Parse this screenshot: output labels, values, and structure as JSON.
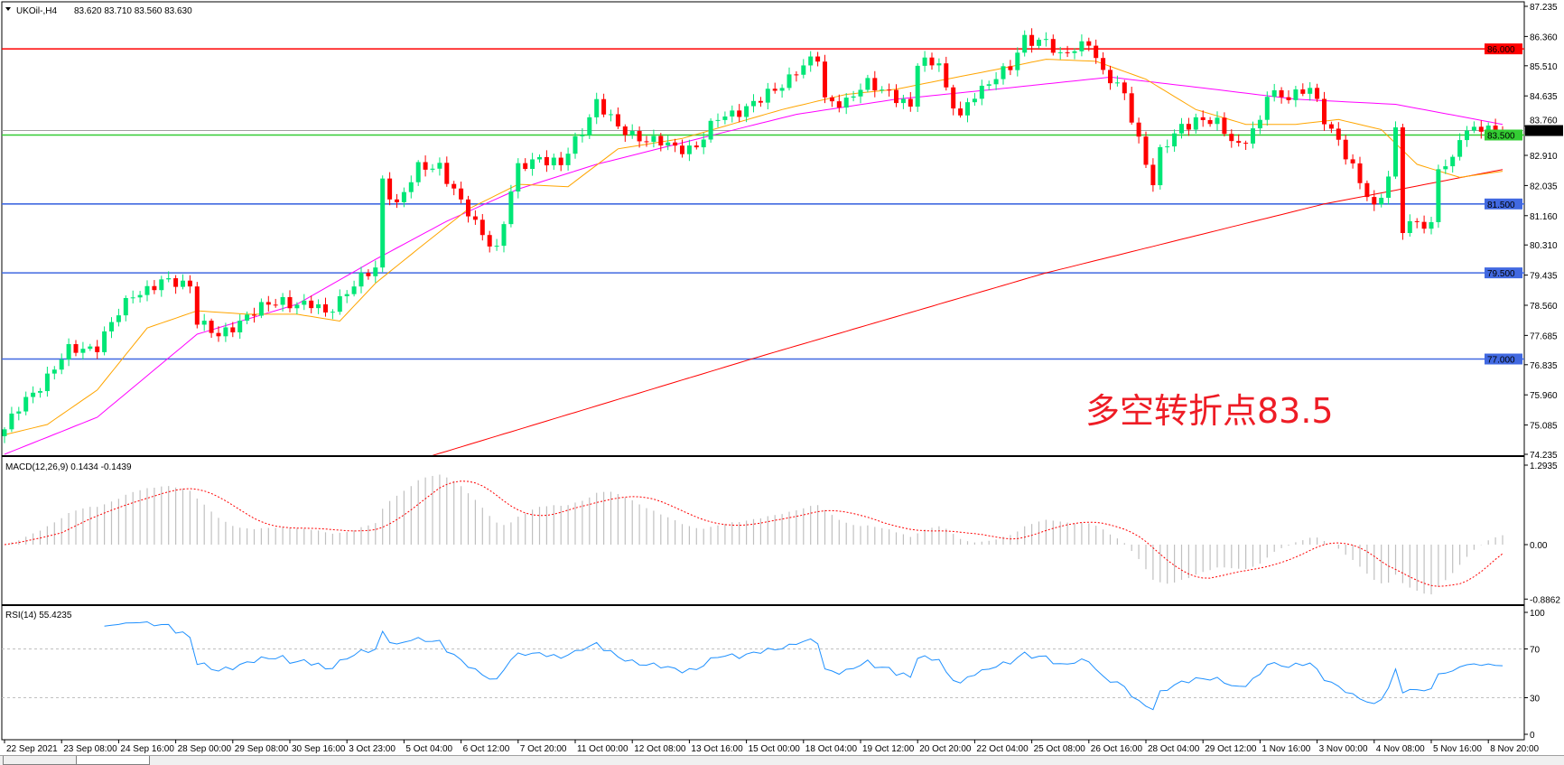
{
  "header": {
    "symbol": "UKOil-,H4",
    "ohlc": "83.620 83.710 83.560 83.630",
    "menu_icon": "triangle-down-icon"
  },
  "annotation": {
    "text": "多空转折点83.5",
    "color": "#ee1c25"
  },
  "colors": {
    "bull": "#00e676",
    "bear": "#ff0000",
    "ma_fast": "#ffa500",
    "ma_mid": "#ff00ff",
    "ma_slow": "#ff0000",
    "level_red": "#ff0000",
    "level_green": "#33cc33",
    "level_blue": "#4169e1",
    "macd_hist": "#c0c0c0",
    "macd_signal": "#ff0000",
    "rsi": "#1e90ff"
  },
  "chart_data": [
    {
      "type": "candlestick",
      "pane": "main",
      "title": "UKOil-,H4",
      "ylim": [
        74.235,
        87.235
      ],
      "price_ticks": [
        "87.235",
        "86.360",
        "85.510",
        "84.635",
        "83.760",
        "82.910",
        "82.035",
        "81.160",
        "80.310",
        "79.435",
        "78.560",
        "77.685",
        "76.835",
        "75.960",
        "75.085",
        "74.235"
      ],
      "current_price": "83.630",
      "levels": [
        {
          "price": 86.0,
          "label": "86.000",
          "color": "#ff0000"
        },
        {
          "price": 83.5,
          "label": "83.500",
          "color": "#33cc33"
        },
        {
          "price": 81.5,
          "label": "81.500",
          "color": "#4169e1"
        },
        {
          "price": 79.5,
          "label": "79.500",
          "color": "#4169e1"
        },
        {
          "price": 77.0,
          "label": "77.000",
          "color": "#4169e1"
        }
      ],
      "close_estimates_by_bar": [
        [
          0,
          74.96
        ],
        [
          2,
          75.54
        ],
        [
          5,
          76.27
        ],
        [
          9,
          77.22
        ],
        [
          13,
          77.4
        ],
        [
          18,
          78.9
        ],
        [
          22,
          79.2
        ],
        [
          26,
          79.2
        ],
        [
          27,
          78.15
        ],
        [
          30,
          77.6
        ],
        [
          34,
          78.3
        ],
        [
          39,
          78.7
        ],
        [
          43,
          78.55
        ],
        [
          45,
          78.3
        ],
        [
          48,
          79.0
        ],
        [
          52,
          79.6
        ],
        [
          53,
          82.2
        ],
        [
          55,
          81.5
        ],
        [
          58,
          82.5
        ],
        [
          61,
          82.65
        ],
        [
          64,
          81.5
        ],
        [
          66,
          80.9
        ],
        [
          69,
          80.2
        ],
        [
          71,
          81.8
        ],
        [
          72,
          82.5
        ],
        [
          75,
          82.9
        ],
        [
          78,
          82.6
        ],
        [
          81,
          83.66
        ],
        [
          83,
          84.5
        ],
        [
          86,
          83.66
        ],
        [
          90,
          83.4
        ],
        [
          94,
          83.1
        ],
        [
          97,
          83.2
        ],
        [
          100,
          83.95
        ],
        [
          103,
          84.24
        ],
        [
          106,
          84.5
        ],
        [
          108,
          84.8
        ],
        [
          111,
          85.4
        ],
        [
          114,
          85.7
        ],
        [
          115,
          84.5
        ],
        [
          118,
          84.5
        ],
        [
          121,
          84.95
        ],
        [
          124,
          84.8
        ],
        [
          127,
          84.24
        ],
        [
          128,
          85.55
        ],
        [
          131,
          85.7
        ],
        [
          132,
          84.8
        ],
        [
          134,
          83.95
        ],
        [
          136,
          84.68
        ],
        [
          139,
          85.26
        ],
        [
          141,
          85.4
        ],
        [
          143,
          86.28
        ],
        [
          146,
          86.28
        ],
        [
          148,
          85.7
        ],
        [
          150,
          86.0
        ],
        [
          152,
          86.28
        ],
        [
          154,
          85.26
        ],
        [
          157,
          84.68
        ],
        [
          159,
          83.4
        ],
        [
          161,
          82.07
        ],
        [
          162,
          82.94
        ],
        [
          165,
          83.8
        ],
        [
          167,
          83.95
        ],
        [
          170,
          83.8
        ],
        [
          173,
          83.23
        ],
        [
          176,
          83.8
        ],
        [
          177,
          84.68
        ],
        [
          180,
          84.68
        ],
        [
          183,
          84.8
        ],
        [
          185,
          83.95
        ],
        [
          187,
          83.4
        ],
        [
          190,
          82.07
        ],
        [
          192,
          81.35
        ],
        [
          194,
          82.36
        ],
        [
          195,
          83.66
        ],
        [
          196,
          80.76
        ],
        [
          198,
          80.9
        ],
        [
          200,
          80.9
        ],
        [
          201,
          82.65
        ],
        [
          203,
          82.7
        ],
        [
          204,
          83.4
        ],
        [
          207,
          83.8
        ],
        [
          210,
          83.63
        ]
      ],
      "ma_fast_by_bar": [
        [
          0,
          74.8
        ],
        [
          6,
          75.1
        ],
        [
          13,
          76.1
        ],
        [
          20,
          77.9
        ],
        [
          27,
          78.4
        ],
        [
          34,
          78.3
        ],
        [
          41,
          78.3
        ],
        [
          47,
          78.1
        ],
        [
          52,
          79.2
        ],
        [
          58,
          80.2
        ],
        [
          65,
          81.35
        ],
        [
          72,
          82.07
        ],
        [
          79,
          82.0
        ],
        [
          86,
          83.1
        ],
        [
          95,
          83.4
        ],
        [
          100,
          83.7
        ],
        [
          109,
          84.24
        ],
        [
          118,
          84.68
        ],
        [
          125,
          84.83
        ],
        [
          132,
          85.12
        ],
        [
          139,
          85.4
        ],
        [
          146,
          85.7
        ],
        [
          153,
          85.64
        ],
        [
          160,
          85.12
        ],
        [
          167,
          84.24
        ],
        [
          174,
          83.81
        ],
        [
          181,
          83.81
        ],
        [
          187,
          83.95
        ],
        [
          193,
          83.66
        ],
        [
          198,
          82.65
        ],
        [
          204,
          82.27
        ],
        [
          210,
          82.45
        ]
      ],
      "ma_mid_by_bar": [
        [
          0,
          74.235
        ],
        [
          13,
          75.31
        ],
        [
          27,
          77.72
        ],
        [
          41,
          78.59
        ],
        [
          52,
          79.89
        ],
        [
          62,
          81.0
        ],
        [
          72,
          81.93
        ],
        [
          83,
          82.65
        ],
        [
          97,
          83.38
        ],
        [
          111,
          84.1
        ],
        [
          125,
          84.54
        ],
        [
          139,
          84.83
        ],
        [
          155,
          85.18
        ],
        [
          167,
          84.89
        ],
        [
          181,
          84.54
        ],
        [
          195,
          84.39
        ],
        [
          210,
          83.81
        ]
      ],
      "ma_slow_by_bar": [
        [
          60,
          74.2
        ],
        [
          106,
          77.08
        ],
        [
          146,
          79.5
        ],
        [
          185,
          81.5
        ],
        [
          210,
          82.5
        ]
      ],
      "time_labels": [
        "22 Sep 2021",
        "23 Sep 08:00",
        "24 Sep 16:00",
        "28 Sep 00:00",
        "29 Sep 08:00",
        "30 Sep 16:00",
        "3 Oct 23:00",
        "5 Oct 04:00",
        "6 Oct 12:00",
        "7 Oct 20:00",
        "11 Oct 00:00",
        "12 Oct 08:00",
        "13 Oct 16:00",
        "15 Oct 00:00",
        "18 Oct 04:00",
        "19 Oct 12:00",
        "20 Oct 20:00",
        "22 Oct 04:00",
        "25 Oct 08:00",
        "26 Oct 16:00",
        "28 Oct 04:00",
        "29 Oct 12:00",
        "1 Nov 16:00",
        "3 Nov 00:00",
        "4 Nov 08:00",
        "5 Nov 16:00",
        "8 Nov 20:00"
      ]
    },
    {
      "type": "histogram+line",
      "pane": "macd",
      "title": "MACD(12,26,9) 0.1434 -0.1439",
      "ylim": [
        -0.8862,
        1.2935
      ],
      "ticks": [
        "1.2935",
        "0.00",
        "-0.8862"
      ]
    },
    {
      "type": "line",
      "pane": "rsi",
      "title": "RSI(14) 55.4235",
      "ylim": [
        0,
        100
      ],
      "ticks": [
        "100",
        "70",
        "30",
        "0"
      ],
      "levels": [
        70,
        30
      ]
    }
  ]
}
